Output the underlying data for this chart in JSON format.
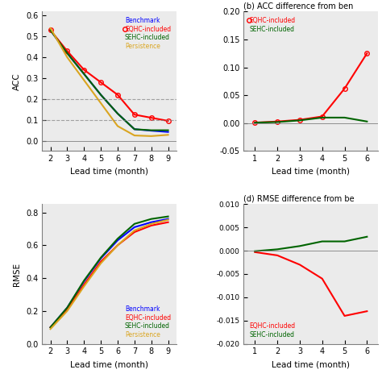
{
  "lead_time_a": [
    2,
    3,
    4,
    5,
    6,
    7,
    8,
    9
  ],
  "lead_time_b": [
    1,
    2,
    3,
    4,
    5,
    6
  ],
  "lead_time_c": [
    2,
    3,
    4,
    5,
    6,
    7,
    8,
    9
  ],
  "lead_time_d": [
    1,
    2,
    3,
    4,
    5,
    6
  ],
  "acc_benchmark": [
    0.53,
    0.42,
    0.32,
    0.22,
    0.13,
    0.055,
    0.048,
    0.042
  ],
  "acc_eqhc": [
    0.53,
    0.43,
    0.34,
    0.28,
    0.22,
    0.125,
    0.11,
    0.095
  ],
  "acc_sehc": [
    0.53,
    0.42,
    0.32,
    0.22,
    0.13,
    0.055,
    0.05,
    0.05
  ],
  "acc_persistence": [
    0.54,
    0.4,
    0.29,
    0.18,
    0.07,
    0.025,
    0.022,
    0.028
  ],
  "acc_diff_eqhc": [
    0.001,
    0.003,
    0.006,
    0.012,
    0.062,
    0.125
  ],
  "acc_diff_sehc": [
    0.001,
    0.002,
    0.005,
    0.01,
    0.01,
    0.003
  ],
  "rmse_benchmark": [
    0.1,
    0.22,
    0.38,
    0.52,
    0.63,
    0.71,
    0.74,
    0.76
  ],
  "rmse_eqhc": [
    0.1,
    0.21,
    0.36,
    0.5,
    0.6,
    0.68,
    0.72,
    0.74
  ],
  "rmse_sehc": [
    0.1,
    0.22,
    0.385,
    0.525,
    0.64,
    0.73,
    0.76,
    0.775
  ],
  "rmse_persistence": [
    0.09,
    0.2,
    0.35,
    0.49,
    0.6,
    0.69,
    0.73,
    0.755
  ],
  "rmse_diff_eqhc": [
    -0.0003,
    -0.001,
    -0.003,
    -0.006,
    -0.014,
    -0.013
  ],
  "rmse_diff_sehc": [
    -0.0001,
    0.0003,
    0.001,
    0.002,
    0.002,
    0.003
  ],
  "color_benchmark": "blue",
  "color_eqhc": "red",
  "color_sehc": "#006400",
  "color_persistence": "#DAA520",
  "panel_b_title": "(b) ACC difference from ben",
  "panel_d_title": "(d) RMSE difference from be",
  "ylabel_a": "ACC",
  "ylabel_c": "RMSE",
  "xlabel": "Lead time (month)",
  "ylim_a": [
    -0.05,
    0.62
  ],
  "ylim_b": [
    -0.05,
    0.2
  ],
  "ylim_c": [
    0.0,
    0.85
  ],
  "ylim_d": [
    -0.02,
    0.01
  ],
  "dashed_lines_a": [
    0.1,
    0.2
  ],
  "marker": "o",
  "marker_size": 4,
  "background_color": "#ebebeb"
}
